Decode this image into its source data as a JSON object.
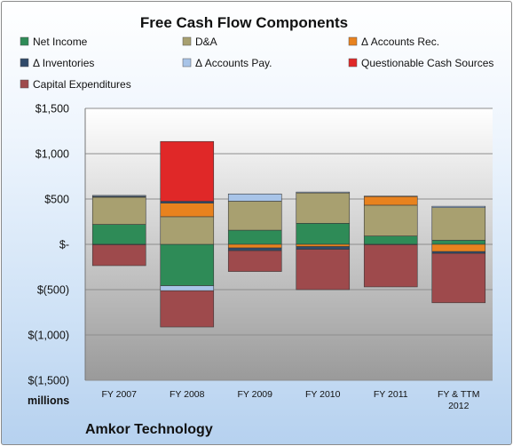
{
  "chart_data": {
    "type": "bar",
    "stacked": true,
    "title": "Free Cash Flow Components",
    "units_label": "millions",
    "company_label": "Amkor Technology",
    "categories": [
      [
        "FY 2007"
      ],
      [
        "FY 2008"
      ],
      [
        "FY 2009"
      ],
      [
        "FY 2010"
      ],
      [
        "FY 2011"
      ],
      [
        "FY & TTM",
        "2012"
      ]
    ],
    "ylim": [
      -1500,
      1500
    ],
    "yticks": [
      {
        "value": 1500,
        "label": "$1,500"
      },
      {
        "value": 1000,
        "label": "$1,000"
      },
      {
        "value": 500,
        "label": "$500"
      },
      {
        "value": 0,
        "label": "$-"
      },
      {
        "value": -500,
        "label": "$(500)"
      },
      {
        "value": -1000,
        "label": "$(1,000)"
      },
      {
        "value": -1500,
        "label": "$(1,500)"
      }
    ],
    "grid": true,
    "legend_position": "top",
    "series": [
      {
        "name": "Net Income",
        "color": "#2e8b57",
        "values": [
          220,
          -457,
          156,
          232,
          92,
          45
        ]
      },
      {
        "name": "D&A",
        "color": "#a8a070",
        "values": [
          300,
          305,
          320,
          335,
          340,
          360
        ]
      },
      {
        "name": "Δ Accounts Rec.",
        "color": "#e8821e",
        "values": [
          -5,
          150,
          -40,
          -25,
          95,
          -80
        ]
      },
      {
        "name": "Δ Inventories",
        "color": "#2f4a6a",
        "values": [
          10,
          20,
          -30,
          -30,
          5,
          -20
        ]
      },
      {
        "name": "Δ Accounts Pay.",
        "color": "#a8c4e8",
        "values": [
          10,
          -55,
          80,
          10,
          -5,
          15
        ]
      },
      {
        "name": "Questionable Cash Sources",
        "color": "#e02828",
        "values": [
          0,
          660,
          0,
          0,
          0,
          0
        ]
      },
      {
        "name": "Capital Expenditures",
        "color": "#9e4a4c",
        "values": [
          -230,
          -400,
          -230,
          -445,
          -465,
          -545
        ]
      }
    ]
  }
}
